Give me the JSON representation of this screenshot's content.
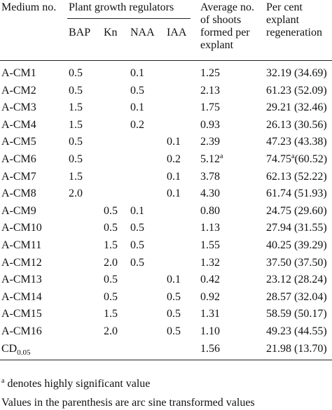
{
  "header": {
    "medium": "Medium no.",
    "group": "Plant growth regulators",
    "regulators": [
      "BAP",
      "Kn",
      "NAA",
      "IAA"
    ],
    "average": [
      "Average no.",
      "of shoots",
      "formed per",
      "explant"
    ],
    "percent": [
      "Per cent",
      "explant",
      "regeneration"
    ]
  },
  "table": {
    "rows": [
      [
        "A-CM1",
        "0.5",
        null,
        "0.1",
        null,
        "1.25",
        "32.19 (34.69)"
      ],
      [
        "A-CM2",
        "0.5",
        null,
        "0.5",
        null,
        "2.13",
        "61.23 (52.09)"
      ],
      [
        "A-CM3",
        "1.5",
        null,
        "0.1",
        null,
        "1.75",
        "29.21 (32.46)"
      ],
      [
        "A-CM4",
        "1.5",
        null,
        "0.2",
        null,
        "0.93",
        "26.13 (30.56)"
      ],
      [
        "A-CM5",
        "0.5",
        null,
        null,
        "0.1",
        "2.39",
        "47.23 (43.38)"
      ],
      [
        "A-CM6",
        "0.5",
        null,
        null,
        "0.2",
        {
          "text": "5.12",
          "sup": "a"
        },
        {
          "text": "74.75",
          "sup": "a",
          "rest": "(60.52)"
        }
      ],
      [
        "A-CM7",
        "1.5",
        null,
        null,
        "0.1",
        "3.78",
        "62.13 (52.22)"
      ],
      [
        "A-CM8",
        "2.0",
        null,
        null,
        "0.1",
        "4.30",
        "61.74 (51.93)"
      ],
      [
        "A-CM9",
        null,
        "0.5",
        "0.1",
        null,
        "0.80",
        "24.75 (29.60)"
      ],
      [
        "A-CM10",
        null,
        "0.5",
        "0.5",
        null,
        "1.13",
        "27.94 (31.55)"
      ],
      [
        "A-CM11",
        null,
        "1.5",
        "0.5",
        null,
        "1.55",
        "40.25 (39.29)"
      ],
      [
        "A-CM12",
        null,
        "2.0",
        "0.5",
        null,
        "1.32",
        "37.50 (37.50)"
      ],
      [
        "A-CM13",
        null,
        "0.5",
        null,
        "0.1",
        "0.42",
        "23.12 (28.24)"
      ],
      [
        "A-CM14",
        null,
        "0.5",
        null,
        "0.5",
        "0.92",
        "28.57 (32.04)"
      ],
      [
        "A-CM15",
        null,
        "1.5",
        null,
        "0.5",
        "1.31",
        "58.59 (50.17)"
      ],
      [
        "A-CM16",
        null,
        "2.0",
        null,
        "0.5",
        "1.10",
        "49.23 (44.55)"
      ],
      [
        {
          "text": "CD",
          "sub": "0.05"
        },
        null,
        null,
        null,
        null,
        "1.56",
        "21.98 (13.70)"
      ]
    ]
  },
  "footnotes": [
    {
      "sup": "a",
      "text": "denotes highly significant value"
    },
    {
      "text": "Values in the parenthesis are arc sine transformed values"
    }
  ]
}
